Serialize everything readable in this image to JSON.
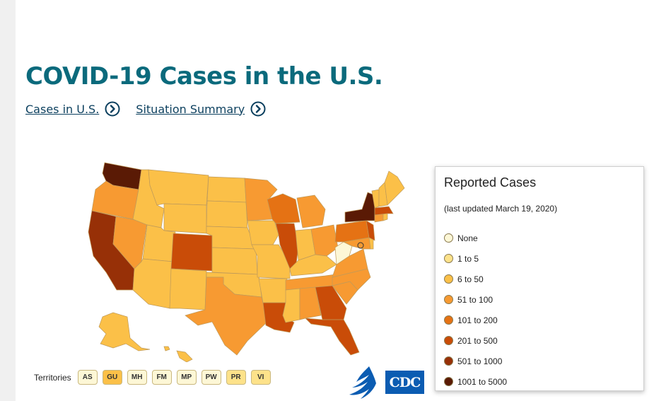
{
  "page": {
    "title": "COVID-19 Cases in the U.S.",
    "links": [
      {
        "label": "Cases in U.S."
      },
      {
        "label": "Situation Summary"
      }
    ]
  },
  "legend": {
    "title": "Reported Cases",
    "updated": "(last updated March 19, 2020)",
    "items": [
      {
        "label": "None",
        "color": "#fdf7d6"
      },
      {
        "label": "1 to 5",
        "color": "#fde28a"
      },
      {
        "label": "6 to 50",
        "color": "#fbc048"
      },
      {
        "label": "51 to 100",
        "color": "#f79a32"
      },
      {
        "label": "101 to 200",
        "color": "#e57214"
      },
      {
        "label": "201 to 500",
        "color": "#c94c08"
      },
      {
        "label": "501 to 1000",
        "color": "#973007"
      },
      {
        "label": "1001 to 5000",
        "color": "#5a1a05"
      }
    ]
  },
  "territories": {
    "label": "Territories",
    "items": [
      {
        "code": "AS",
        "color": "#fdf7d6"
      },
      {
        "code": "GU",
        "color": "#fbc048"
      },
      {
        "code": "MH",
        "color": "#fdf7d6"
      },
      {
        "code": "FM",
        "color": "#fdf7d6"
      },
      {
        "code": "MP",
        "color": "#fdf7d6"
      },
      {
        "code": "PW",
        "color": "#fdf7d6"
      },
      {
        "code": "PR",
        "color": "#fde28a"
      },
      {
        "code": "VI",
        "color": "#fde28a"
      }
    ]
  },
  "logos": {
    "agency": "CDC"
  },
  "map_data": {
    "states": {
      "WA": "#5a1a05",
      "OR": "#f79a32",
      "CA": "#973007",
      "NV": "#f79a32",
      "ID": "#fbc048",
      "MT": "#fbc048",
      "WY": "#fbc048",
      "UT": "#fbc048",
      "AZ": "#fbc048",
      "CO": "#c94c08",
      "NM": "#fbc048",
      "ND": "#fbc048",
      "SD": "#fbc048",
      "NE": "#fbc048",
      "KS": "#fbc048",
      "OK": "#fbc048",
      "TX": "#f79a32",
      "MN": "#f79a32",
      "IA": "#fbc048",
      "MO": "#fbc048",
      "AR": "#fbc048",
      "LA": "#c94c08",
      "WI": "#e57214",
      "IL": "#c94c08",
      "MI": "#f79a32",
      "IN": "#fbc048",
      "OH": "#f79a32",
      "KY": "#fbc048",
      "TN": "#f79a32",
      "MS": "#fbc048",
      "AL": "#f79a32",
      "GA": "#c94c08",
      "FL": "#c94c08",
      "SC": "#f79a32",
      "NC": "#f79a32",
      "VA": "#f79a32",
      "WV": "#fdf7d6",
      "PA": "#e57214",
      "NY": "#5a1a05",
      "NJ": "#c94c08",
      "MD": "#f79a32",
      "DE": "#fbc048",
      "CT": "#f79a32",
      "RI": "#fbc048",
      "MA": "#c94c08",
      "VT": "#fbc048",
      "NH": "#fbc048",
      "ME": "#fbc048",
      "AK": "#fbc048",
      "HI": "#fbc048"
    }
  }
}
